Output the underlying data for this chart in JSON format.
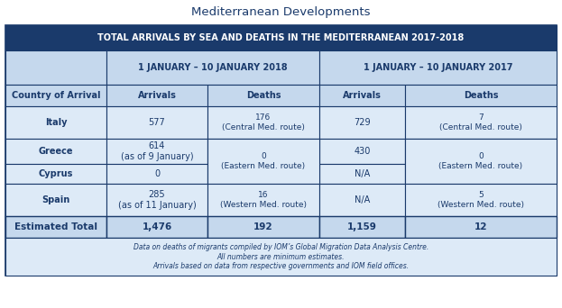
{
  "title": "Mediterranean Developments",
  "header_title": "TOTAL ARRIVALS BY SEA AND DEATHS IN THE MEDITERRANEAN 2017-2018",
  "col_2018": "1 JANUARY – 10 JANUARY 2018",
  "col_2017": "1 JANUARY – 10 JANUARY 2017",
  "sub_headers": [
    "Country of Arrival",
    "Arrivals",
    "Deaths",
    "Arrivals",
    "Deaths"
  ],
  "rows": [
    {
      "country": "Italy",
      "arr2018": "577",
      "deaths2018": "176\n(Central Med. route)",
      "arr2017": "729",
      "deaths2017": "7\n(Central Med. route)"
    },
    {
      "country": "Greece",
      "arr2018": "614\n(as of 9 January)",
      "deaths2018": "0\n(Eastern Med. route)",
      "arr2017": "430",
      "deaths2017": "0\n(Eastern Med. route)"
    },
    {
      "country": "Cyprus",
      "arr2018": "0",
      "deaths2018": "",
      "arr2017": "N/A",
      "deaths2017": ""
    },
    {
      "country": "Spain",
      "arr2018": "285\n(as of 11 January)",
      "deaths2018": "16\n(Western Med. route)",
      "arr2017": "N/A",
      "deaths2017": "5\n(Western Med. route)"
    }
  ],
  "total_row": {
    "label": "Estimated Total",
    "arr2018": "1,476",
    "deaths2018": "192",
    "arr2017": "1,159",
    "deaths2017": "12"
  },
  "footnote": "Data on deaths of migrants compiled by IOM’s Global Migration Data Analysis Centre.\nAll numbers are minimum estimates.\nArrivals based on data from respective governments and IOM field offices.",
  "color_header_bg": "#1a3a6b",
  "color_header_text": "#FFFFFF",
  "color_date_bg": "#c5d8ed",
  "color_date_text": "#1a3a6b",
  "color_colhdr_bg": "#c5d8ed",
  "color_colhdr_text": "#1a3a6b",
  "color_row_bg": "#ddeaf7",
  "color_total_bg": "#c5d8ed",
  "color_total_text": "#1a3a6b",
  "color_border": "#1a3a6b",
  "color_outer_bg": "#FFFFFF",
  "color_footnote_text": "#1a3a6b",
  "color_title_text": "#1a3a6b",
  "fig_w": 6.23,
  "fig_h": 3.42,
  "dpi": 100
}
